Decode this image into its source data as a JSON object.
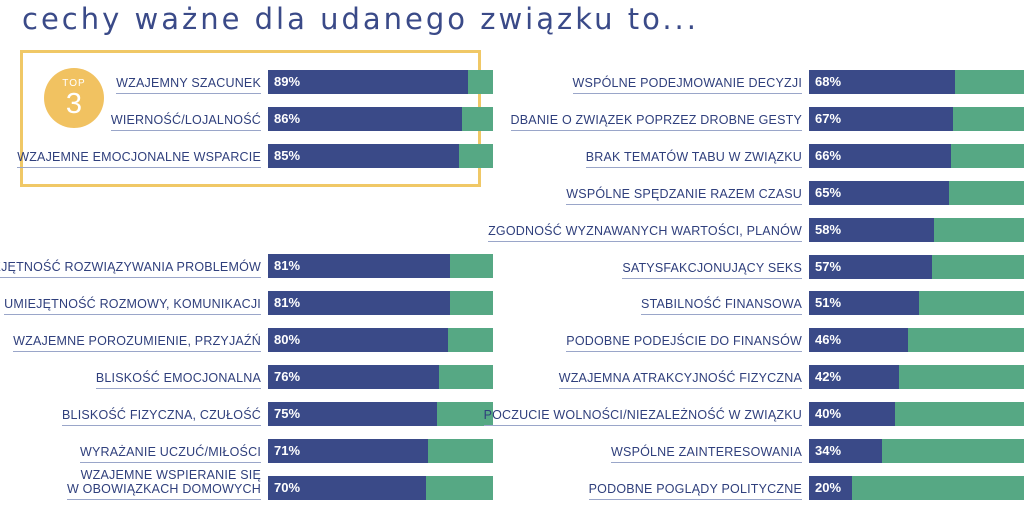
{
  "title": "cechy ważne dla udanego związku to...",
  "badge": {
    "top": "TOP",
    "number": "3"
  },
  "colors": {
    "fill": "#3a4a88",
    "track": "#56a884",
    "highlight": "#f0c866"
  },
  "chart_data": {
    "type": "bar",
    "orientation": "horizontal",
    "value_unit": "%",
    "xlim": [
      0,
      100
    ],
    "highlighted_top": 3,
    "categories": [
      "WZAJEMNY SZACUNEK",
      "WIERNOŚĆ/LOJALNOŚĆ",
      "WZAJEMNE EMOCJONALNE WSPARCIE",
      "UMIEJĘTNOŚĆ ROZWIĄZYWANIA PROBLEMÓW",
      "UMIEJĘTNOŚĆ ROZMOWY, KOMUNIKACJI",
      "WZAJEMNE POROZUMIENIE, PRZYJAŹŃ",
      "BLISKOŚĆ EMOCJONALNA",
      "BLISKOŚĆ FIZYCZNA, CZUŁOŚĆ",
      "WYRAŻANIE UCZUĆ/MIŁOŚCI",
      "WZAJEMNE WSPIERANIE SIĘ W OBOWIĄZKACH DOMOWYCH",
      "WSPÓLNE PODEJMOWANIE DECYZJI",
      "DBANIE O ZWIĄZEK POPRZEZ DROBNE GESTY",
      "BRAK TEMATÓW TABU W ZWIĄZKU",
      "WSPÓLNE SPĘDZANIE RAZEM CZASU",
      "ZGODNOŚĆ WYZNAWANYCH WARTOŚCI, PLANÓW",
      "SATYSFAKCJONUJĄCY SEKS",
      "STABILNOŚĆ FINANSOWA",
      "PODOBNE PODEJŚCIE DO FINANSÓW",
      "WZAJEMNA ATRAKCYJNOŚĆ FIZYCZNA",
      "POCZUCIE WOLNOŚCI/NIEZALEŻNOŚĆ W ZWIĄZKU",
      "WSPÓLNE ZAINTERESOWANIA",
      "PODOBNE POGLĄDY POLITYCZNE"
    ],
    "values": [
      89,
      86,
      85,
      81,
      81,
      80,
      76,
      75,
      71,
      70,
      68,
      67,
      66,
      65,
      58,
      57,
      51,
      46,
      42,
      40,
      34,
      20
    ],
    "label_lines": [
      [
        "WZAJEMNY SZACUNEK"
      ],
      [
        "WIERNOŚĆ/LOJALNOŚĆ"
      ],
      [
        "WZAJEMNE EMOCJONALNE WSPARCIE"
      ],
      [
        "UMIEJĘTNOŚĆ ROZWIĄZYWANIA PROBLEMÓW"
      ],
      [
        "UMIEJĘTNOŚĆ ROZMOWY, KOMUNIKACJI"
      ],
      [
        "WZAJEMNE POROZUMIENIE, PRZYJAŹŃ"
      ],
      [
        "BLISKOŚĆ EMOCJONALNA"
      ],
      [
        "BLISKOŚĆ FIZYCZNA, CZUŁOŚĆ"
      ],
      [
        "WYRAŻANIE UCZUĆ/MIŁOŚCI"
      ],
      [
        "WZAJEMNE WSPIERANIE SIĘ",
        "W OBOWIĄZKACH DOMOWYCH"
      ],
      [
        "WSPÓLNE PODEJMOWANIE DECYZJI"
      ],
      [
        "DBANIE O ZWIĄZEK POPRZEZ DROBNE GESTY"
      ],
      [
        "BRAK TEMATÓW TABU W ZWIĄZKU"
      ],
      [
        "WSPÓLNE SPĘDZANIE RAZEM CZASU"
      ],
      [
        "ZGODNOŚĆ WYZNAWANYCH WARTOŚCI, PLANÓW"
      ],
      [
        "SATYSFAKCJONUJĄCY SEKS"
      ],
      [
        "STABILNOŚĆ FINANSOWA"
      ],
      [
        "PODOBNE PODEJŚCIE DO FINANSÓW"
      ],
      [
        "WZAJEMNA ATRAKCYJNOŚĆ FIZYCZNA"
      ],
      [
        "POCZUCIE WOLNOŚCI/NIEZALEŻNOŚĆ W ZWIĄZKU"
      ],
      [
        "WSPÓLNE ZAINTERESOWANIA"
      ],
      [
        "PODOBNE POGLĄDY POLITYCZNE"
      ]
    ]
  }
}
